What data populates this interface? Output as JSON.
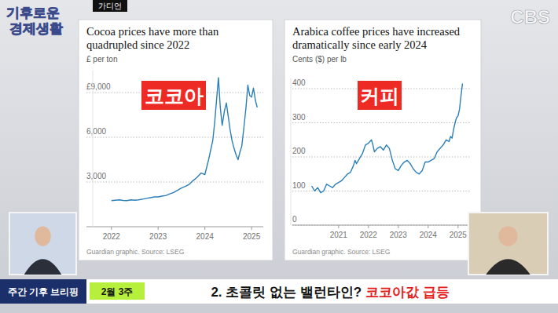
{
  "page": {
    "logo": [
      "기후로운",
      "경제생활"
    ],
    "source_tag": "가디언",
    "channel": "CBS",
    "segment": "주간 기후 브리핑",
    "week": "2월 3주",
    "headline": "2. 초콜릿 없는 밸런타인?",
    "headline_highlight": "코코아값 급등"
  },
  "chart_data": [
    {
      "type": "line",
      "title": "Cocoa prices have more than quadrupled since 2022",
      "y_label": "£ per ton",
      "annotations": [
        "코코아"
      ],
      "source": "Guardian graphic. Source: LSEG",
      "x": [
        2022.0,
        2022.08,
        2022.17,
        2022.25,
        2022.33,
        2022.42,
        2022.5,
        2022.58,
        2022.67,
        2022.75,
        2022.83,
        2022.92,
        2023.0,
        2023.08,
        2023.17,
        2023.25,
        2023.33,
        2023.42,
        2023.5,
        2023.58,
        2023.67,
        2023.75,
        2023.83,
        2023.92,
        2024.0,
        2024.08,
        2024.17,
        2024.21,
        2024.25,
        2024.29,
        2024.33,
        2024.37,
        2024.42,
        2024.46,
        2024.5,
        2024.54,
        2024.58,
        2024.62,
        2024.67,
        2024.71,
        2024.75,
        2024.79,
        2024.83,
        2024.88,
        2024.92,
        2024.96,
        2025.0,
        2025.04,
        2025.08,
        2025.12
      ],
      "values": [
        1750,
        1780,
        1800,
        1760,
        1750,
        1800,
        1780,
        1800,
        1850,
        1900,
        1950,
        2000,
        2000,
        2050,
        2100,
        2200,
        2300,
        2450,
        2600,
        2700,
        2850,
        3100,
        3300,
        3600,
        3500,
        4500,
        5800,
        7000,
        8500,
        10000,
        8000,
        6800,
        7800,
        8300,
        7400,
        6500,
        5800,
        5300,
        4800,
        4500,
        5000,
        5400,
        6500,
        8000,
        9500,
        8800,
        8700,
        9300,
        8500,
        8000
      ],
      "color": "#2b7fb8",
      "xlim": [
        2021.6,
        2025.25
      ],
      "xticks": [
        2022,
        2023,
        2024,
        2025
      ],
      "ylim": [
        0,
        10500
      ],
      "yticks": [
        {
          "value": 3000,
          "label": "3,000"
        },
        {
          "value": 6000,
          "label": "6,000"
        },
        {
          "value": 9000,
          "label": "£9,000"
        }
      ],
      "grid": true
    },
    {
      "type": "line",
      "title": "Arabica coffee prices have increased dramatically since early 2024",
      "y_label": "Cents ($) per lb",
      "annotations": [
        "커피"
      ],
      "source": "Guardian graphic. Source: LSEG",
      "x": [
        2020.1,
        2020.2,
        2020.3,
        2020.4,
        2020.5,
        2020.6,
        2020.7,
        2020.8,
        2020.9,
        2021.0,
        2021.1,
        2021.2,
        2021.3,
        2021.4,
        2021.5,
        2021.55,
        2021.6,
        2021.7,
        2021.8,
        2021.9,
        2022.0,
        2022.1,
        2022.15,
        2022.2,
        2022.3,
        2022.4,
        2022.5,
        2022.6,
        2022.7,
        2022.8,
        2022.9,
        2023.0,
        2023.1,
        2023.2,
        2023.3,
        2023.4,
        2023.5,
        2023.6,
        2023.7,
        2023.8,
        2023.9,
        2024.0,
        2024.1,
        2024.2,
        2024.3,
        2024.4,
        2024.5,
        2024.6,
        2024.7,
        2024.75,
        2024.8,
        2024.85,
        2024.9,
        2024.95,
        2025.0,
        2025.05,
        2025.1,
        2025.15
      ],
      "values": [
        115,
        100,
        110,
        95,
        100,
        120,
        115,
        110,
        120,
        125,
        130,
        140,
        150,
        155,
        175,
        190,
        180,
        195,
        210,
        235,
        240,
        250,
        235,
        215,
        225,
        230,
        220,
        235,
        225,
        190,
        165,
        160,
        175,
        185,
        190,
        180,
        165,
        155,
        150,
        160,
        185,
        185,
        190,
        195,
        215,
        225,
        235,
        250,
        245,
        260,
        255,
        280,
        300,
        315,
        320,
        340,
        380,
        415
      ],
      "color": "#2b7fb8",
      "xlim": [
        2019.4,
        2025.4
      ],
      "xticks": [
        2021,
        2022,
        2023,
        2024,
        2025
      ],
      "ylim": [
        0,
        430
      ],
      "yticks": [
        0,
        100,
        200,
        300,
        400
      ],
      "grid": true
    }
  ]
}
